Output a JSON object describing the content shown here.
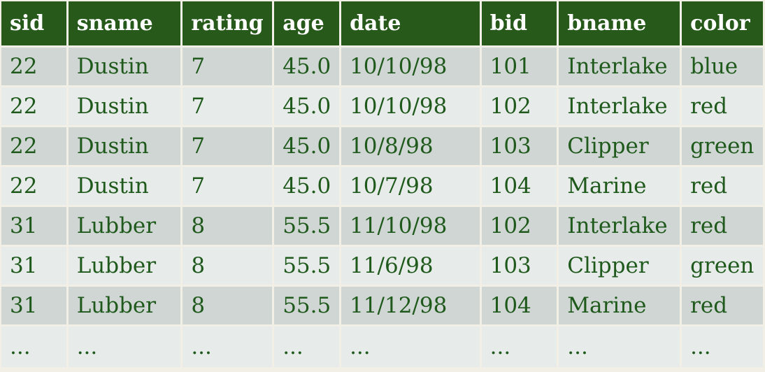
{
  "table": {
    "headers": [
      "sid",
      "sname",
      "rating",
      "age",
      "date",
      "bid",
      "bname",
      "color"
    ],
    "rows": [
      [
        "22",
        "Dustin",
        "7",
        "45.0",
        "10/10/98",
        "101",
        "Interlake",
        "blue"
      ],
      [
        "22",
        "Dustin",
        "7",
        "45.0",
        "10/10/98",
        "102",
        "Interlake",
        "red"
      ],
      [
        "22",
        "Dustin",
        "7",
        "45.0",
        "10/8/98",
        "103",
        "Clipper",
        "green"
      ],
      [
        "22",
        "Dustin",
        "7",
        "45.0",
        "10/7/98",
        "104",
        "Marine",
        "red"
      ],
      [
        "31",
        "Lubber",
        "8",
        "55.5",
        "11/10/98",
        "102",
        "Interlake",
        "red"
      ],
      [
        "31",
        "Lubber",
        "8",
        "55.5",
        "11/6/98",
        "103",
        "Clipper",
        "green"
      ],
      [
        "31",
        "Lubber",
        "8",
        "55.5",
        "11/12/98",
        "104",
        "Marine",
        "red"
      ],
      [
        "...",
        "...",
        "...",
        "...",
        "...",
        "...",
        "...",
        "..."
      ]
    ]
  },
  "colors": {
    "header_bg": "#26591a",
    "header_text": "#ffffff",
    "row_odd_bg": "#cfd6d3",
    "row_even_bg": "#e7ebea",
    "cell_text": "#1f5a1c",
    "border": "#f2efe6"
  }
}
